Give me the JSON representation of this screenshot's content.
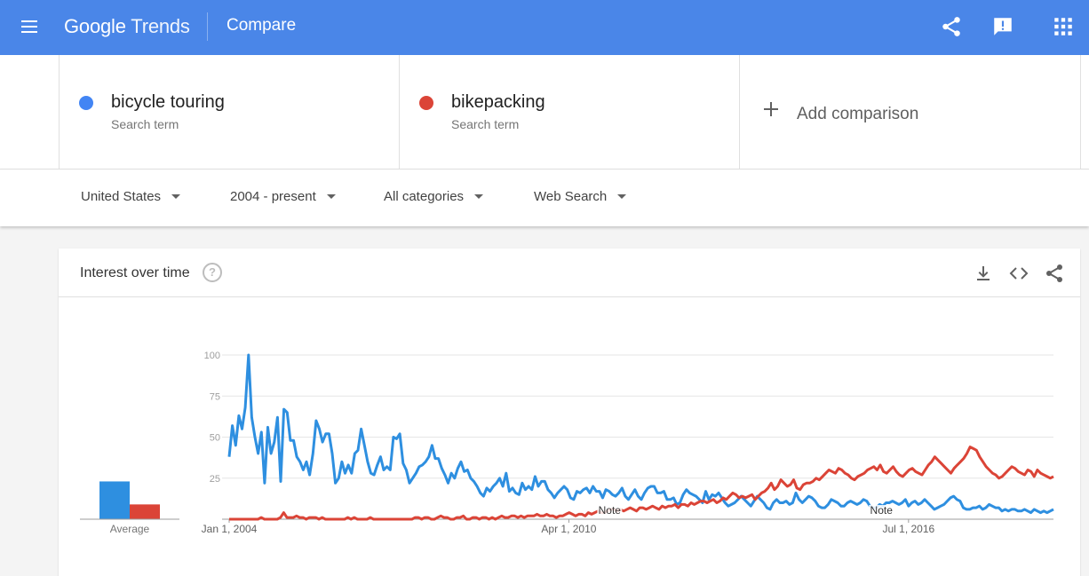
{
  "header": {
    "logo_word1": "Google",
    "logo_word2": "Trends",
    "title": "Compare",
    "icons": [
      "menu-icon",
      "share-icon",
      "feedback-icon",
      "apps-icon"
    ],
    "brand_color": "#4a86e8"
  },
  "terms": [
    {
      "name": "bicycle touring",
      "sub": "Search term",
      "color": "#4285f4"
    },
    {
      "name": "bikepacking",
      "sub": "Search term",
      "color": "#db4437"
    }
  ],
  "add_comparison": {
    "label": "Add comparison",
    "icon": "plus-icon"
  },
  "filters": {
    "region": "United States",
    "period": "2004 - present",
    "category": "All categories",
    "search_type": "Web Search"
  },
  "card": {
    "title": "Interest over time",
    "icons": [
      "help-icon",
      "download-icon",
      "embed-icon",
      "share-icon"
    ]
  },
  "chart_data": {
    "type": "line",
    "title": "Interest over time",
    "ylim": [
      0,
      100
    ],
    "yticks": [
      "25",
      "50",
      "75",
      "100"
    ],
    "xtick_labels": [
      "Jan 1, 2004",
      "Apr 1, 2010",
      "Jul 1, 2016"
    ],
    "x_start": "2004-01",
    "x_end": "2019-03",
    "notes": [
      {
        "label": "Note",
        "date": "2011-01"
      },
      {
        "label": "Note",
        "date": "2016-01"
      }
    ],
    "average": {
      "label": "Average",
      "values": [
        23,
        9
      ]
    },
    "series": [
      {
        "name": "bicycle touring",
        "color": "#2e8fe0",
        "values": [
          38,
          57,
          45,
          63,
          55,
          68,
          100,
          62,
          50,
          40,
          53,
          22,
          56,
          40,
          47,
          62,
          23,
          67,
          65,
          48,
          48,
          38,
          35,
          30,
          35,
          27,
          40,
          60,
          55,
          47,
          52,
          52,
          40,
          22,
          25,
          35,
          28,
          33,
          28,
          40,
          42,
          55,
          45,
          35,
          28,
          27,
          33,
          38,
          30,
          32,
          30,
          50,
          49,
          52,
          34,
          30,
          22,
          25,
          28,
          32,
          33,
          35,
          38,
          45,
          37,
          37,
          31,
          27,
          22,
          28,
          25,
          31,
          35,
          29,
          30,
          25,
          23,
          20,
          16,
          14,
          19,
          17,
          20,
          22,
          25,
          20,
          28,
          17,
          19,
          16,
          15,
          22,
          18,
          20,
          18,
          26,
          20,
          23,
          23,
          18,
          16,
          13,
          16,
          18,
          20,
          18,
          13,
          12,
          17,
          16,
          18,
          19,
          16,
          20,
          17,
          17,
          13,
          18,
          17,
          15,
          14,
          16,
          19,
          14,
          12,
          15,
          18,
          14,
          12,
          16,
          19,
          20,
          20,
          16,
          16,
          17,
          12,
          12,
          13,
          9,
          10,
          15,
          18,
          16,
          15,
          14,
          12,
          10,
          17,
          12,
          15,
          14,
          16,
          13,
          10,
          8,
          9,
          10,
          12,
          14,
          12,
          10,
          8,
          11,
          14,
          12,
          10,
          7,
          6,
          10,
          12,
          10,
          10,
          11,
          9,
          10,
          16,
          12,
          10,
          12,
          14,
          13,
          11,
          8,
          7,
          7,
          9,
          12,
          11,
          10,
          8,
          8,
          10,
          11,
          10,
          9,
          10,
          12,
          11,
          8,
          7,
          7,
          9,
          8,
          10,
          10,
          11,
          10,
          9,
          10,
          12,
          8,
          10,
          11,
          9,
          10,
          12,
          10,
          8,
          6,
          7,
          8,
          9,
          11,
          13,
          14,
          12,
          11,
          7,
          6,
          6,
          7,
          7,
          8,
          6,
          7,
          9,
          8,
          7,
          7,
          5,
          6,
          5,
          6,
          6,
          5,
          5,
          6,
          5,
          4,
          6,
          5,
          4,
          5,
          4,
          5,
          6
        ],
        "_values_note": ""
      },
      {
        "name": "bikepacking",
        "color": "#db4437",
        "values": [
          0,
          0,
          0,
          0,
          0,
          0,
          0,
          0,
          0,
          0,
          1,
          0,
          0,
          0,
          0,
          0,
          1,
          4,
          1,
          1,
          1,
          2,
          1,
          1,
          0,
          1,
          1,
          1,
          0,
          1,
          0,
          0,
          0,
          0,
          0,
          0,
          0,
          1,
          0,
          1,
          0,
          0,
          0,
          0,
          1,
          0,
          0,
          0,
          0,
          0,
          0,
          0,
          0,
          0,
          0,
          0,
          0,
          0,
          1,
          1,
          0,
          1,
          1,
          0,
          0,
          1,
          2,
          1,
          1,
          0,
          0,
          1,
          1,
          2,
          0,
          0,
          1,
          1,
          0,
          1,
          1,
          0,
          1,
          0,
          1,
          2,
          1,
          1,
          2,
          2,
          1,
          2,
          1,
          2,
          2,
          2,
          3,
          2,
          2,
          3,
          2,
          2,
          1,
          2,
          2,
          3,
          4,
          3,
          2,
          3,
          3,
          2,
          4,
          3,
          4,
          5,
          4,
          4,
          5,
          6,
          6,
          5,
          6,
          5,
          6,
          7,
          6,
          5,
          7,
          7,
          6,
          7,
          8,
          7,
          6,
          8,
          7,
          8,
          8,
          9,
          7,
          9,
          9,
          8,
          10,
          9,
          10,
          11,
          11,
          10,
          11,
          12,
          10,
          11,
          13,
          12,
          14,
          16,
          15,
          13,
          14,
          13,
          14,
          15,
          12,
          14,
          16,
          17,
          19,
          22,
          18,
          20,
          24,
          22,
          20,
          21,
          24,
          19,
          18,
          21,
          22,
          22,
          23,
          25,
          24,
          26,
          28,
          30,
          29,
          28,
          31,
          30,
          28,
          27,
          25,
          24,
          26,
          27,
          28,
          30,
          31,
          32,
          30,
          33,
          29,
          28,
          30,
          32,
          29,
          27,
          26,
          28,
          30,
          31,
          29,
          28,
          27,
          30,
          33,
          35,
          38,
          36,
          34,
          32,
          30,
          28,
          31,
          33,
          35,
          37,
          40,
          44,
          43,
          42,
          38,
          35,
          32,
          30,
          28,
          27,
          25,
          26,
          28,
          30,
          32,
          31,
          29,
          28,
          27,
          30,
          29,
          26,
          30,
          28,
          27,
          26,
          25,
          26
        ]
      }
    ]
  }
}
